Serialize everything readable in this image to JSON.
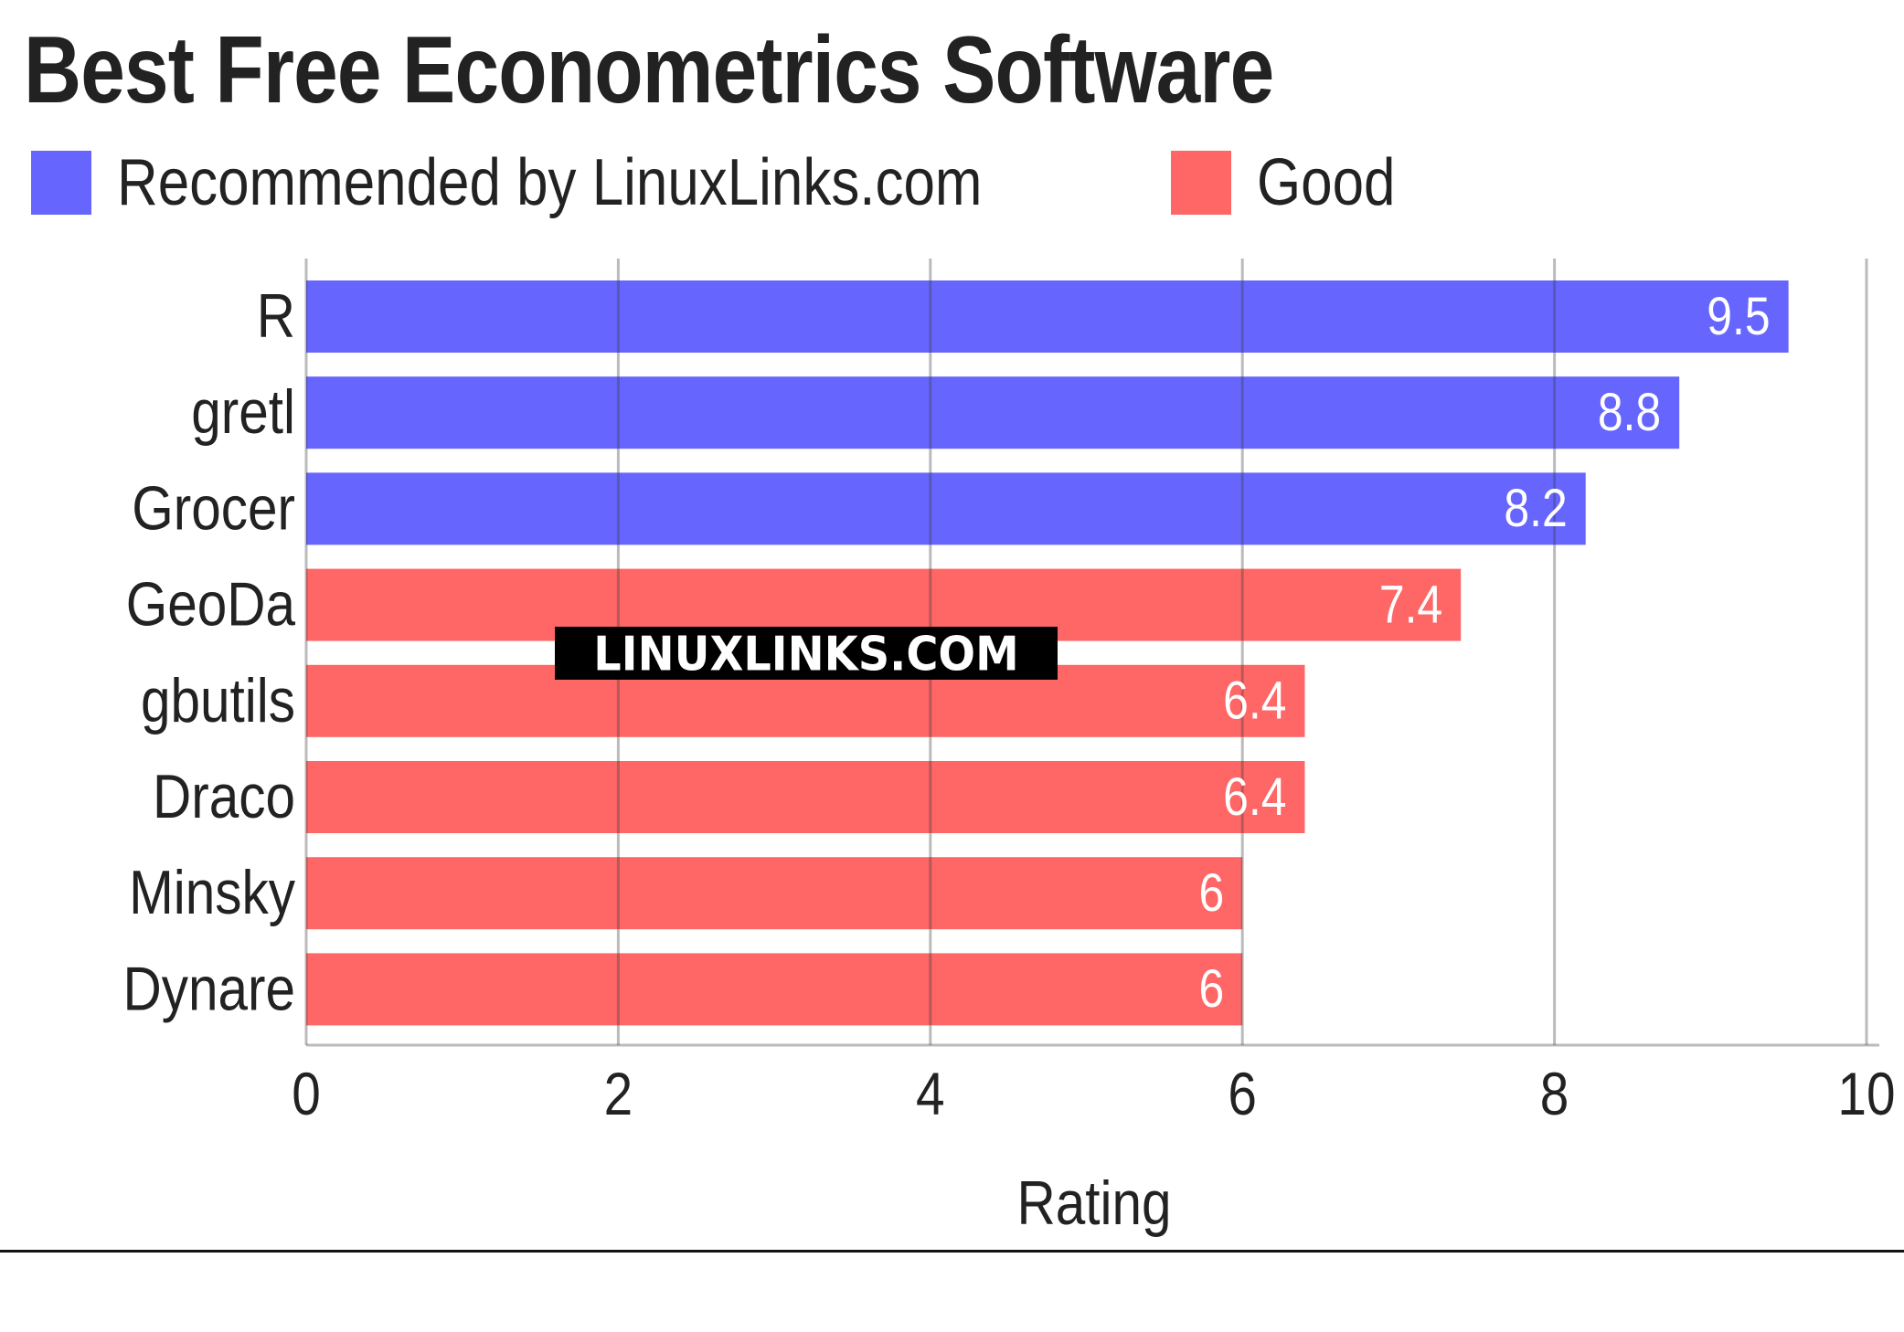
{
  "title": "Best Free Econometrics Software",
  "legend": [
    {
      "label": "Recommended by LinuxLinks.com",
      "color": "#6666ff"
    },
    {
      "label": "Good",
      "color": "#ff6666"
    }
  ],
  "watermark": "LINUXLINKS.COM",
  "chart_data": {
    "type": "bar",
    "orientation": "horizontal",
    "categories": [
      "R",
      "gretl",
      "Grocer",
      "GeoDa",
      "gbutils",
      "Draco",
      "Minsky",
      "Dynare"
    ],
    "values": [
      9.5,
      8.8,
      8.2,
      7.4,
      6.4,
      6.4,
      6,
      6
    ],
    "value_labels": [
      "9.5",
      "8.8",
      "8.2",
      "7.4",
      "6.4",
      "6.4",
      "6",
      "6"
    ],
    "groups": [
      "Recommended by LinuxLinks.com",
      "Recommended by LinuxLinks.com",
      "Recommended by LinuxLinks.com",
      "Good",
      "Good",
      "Good",
      "Good",
      "Good"
    ],
    "colors": {
      "Recommended by LinuxLinks.com": "#6666ff",
      "Good": "#ff6666"
    },
    "xlabel": "Rating",
    "xlim": [
      0,
      10
    ],
    "xticks": [
      "0",
      "2",
      "4",
      "6",
      "8",
      "10"
    ],
    "grid": true,
    "legend_position": "top-left"
  }
}
